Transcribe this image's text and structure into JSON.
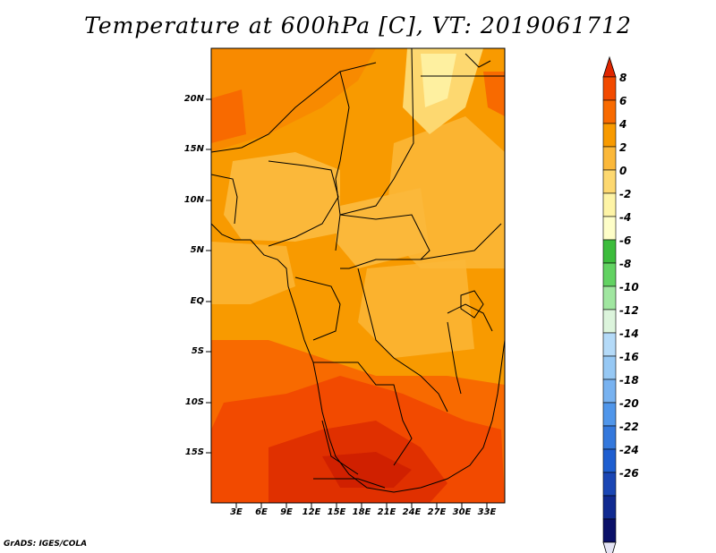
{
  "title": "Temperature at 600hPa [C], VT: 2019061712",
  "credit": "GrADS: IGES/COLA",
  "map": {
    "y_ticks": [
      "20N",
      "15N",
      "10N",
      "5N",
      "EQ",
      "5S",
      "10S",
      "15S"
    ],
    "x_ticks": [
      "3E",
      "6E",
      "9E",
      "12E",
      "15E",
      "18E",
      "21E",
      "24E",
      "27E",
      "30E",
      "33E"
    ]
  },
  "colorbar": {
    "labels": [
      "8",
      "6",
      "4",
      "2",
      "0",
      "-2",
      "-4",
      "-6",
      "-8",
      "-10",
      "-12",
      "-14",
      "-16",
      "-18",
      "-20",
      "-22",
      "-24",
      "-26"
    ],
    "colors": [
      "#e02600",
      "#f24a00",
      "#f86a00",
      "#f89a00",
      "#fbb83a",
      "#fdd870",
      "#fef4a6",
      "#fefec8",
      "#3cbc3c",
      "#62d262",
      "#a0e6a0",
      "#dcf4dc",
      "#b4daf8",
      "#96c8f4",
      "#78b2f0",
      "#5096ea",
      "#3478dc",
      "#1e5ed0",
      "#1a46b4",
      "#102a90",
      "#0a1068",
      "#e4e4f4"
    ]
  },
  "fields": {
    "colors": {
      "warm_8": "#e02600",
      "warm_6": "#f24a00",
      "warm_4": "#f86a00",
      "warm_2": "#f89a00",
      "warm_0": "#fbb83a",
      "warm_m2": "#fdd870"
    }
  }
}
